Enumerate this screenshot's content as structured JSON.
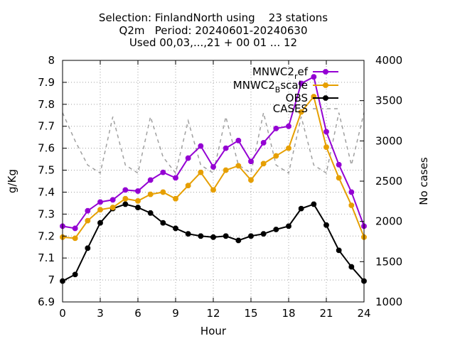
{
  "chart_data": {
    "type": "line",
    "title_lines": [
      "Selection: FinlandNorth using    23 stations",
      "Q2m   Period: 20240601-20240630",
      "Used 00,03,...,21 + 00 01 ... 12"
    ],
    "xlabel": "Hour",
    "ylabel": "g/Kg",
    "y2label": "No cases",
    "xlim": [
      0,
      24
    ],
    "ylim": [
      6.9,
      8.0
    ],
    "y2lim": [
      1000,
      4000
    ],
    "xticks": [
      "0",
      "3",
      "6",
      "9",
      "12",
      "15",
      "18",
      "21",
      "24"
    ],
    "yticks": [
      "6.9",
      "7",
      "7.1",
      "7.2",
      "7.3",
      "7.4",
      "7.5",
      "7.6",
      "7.7",
      "7.8",
      "7.9",
      "8"
    ],
    "y2ticks": [
      "1000",
      "1500",
      "2000",
      "2500",
      "3000",
      "3500",
      "4000"
    ],
    "grid": true,
    "legend_position": "top-right",
    "x": [
      0,
      1,
      2,
      3,
      4,
      5,
      6,
      7,
      8,
      9,
      10,
      11,
      12,
      13,
      14,
      15,
      16,
      17,
      18,
      19,
      20,
      21,
      22,
      23,
      24
    ],
    "series": [
      {
        "name": "MNWC2_ref",
        "legend": {
          "main": "MNWC2",
          "sub": "r",
          "rest": "ef"
        },
        "color": "#9400d3",
        "axis": "y1",
        "style": "line-points",
        "values": [
          7.245,
          7.235,
          7.315,
          7.355,
          7.365,
          7.41,
          7.405,
          7.455,
          7.49,
          7.465,
          7.555,
          7.61,
          7.515,
          7.6,
          7.635,
          7.54,
          7.625,
          7.69,
          7.7,
          7.895,
          7.925,
          7.675,
          7.525,
          7.4,
          7.245
        ]
      },
      {
        "name": "MNWC2_Bscale",
        "legend": {
          "main": "MNWC2",
          "sub": "B",
          "rest": "scale"
        },
        "color": "#e69f00",
        "axis": "y1",
        "style": "line-points",
        "values": [
          7.195,
          7.19,
          7.27,
          7.32,
          7.33,
          7.37,
          7.36,
          7.39,
          7.4,
          7.37,
          7.43,
          7.49,
          7.41,
          7.5,
          7.52,
          7.455,
          7.53,
          7.565,
          7.6,
          7.765,
          7.835,
          7.605,
          7.465,
          7.34,
          7.195
        ]
      },
      {
        "name": "OBS",
        "legend": {
          "main": "OBS",
          "sub": "",
          "rest": ""
        },
        "color": "#000000",
        "axis": "y1",
        "style": "line-points",
        "values": [
          6.995,
          7.025,
          7.145,
          7.26,
          7.325,
          7.345,
          7.33,
          7.305,
          7.26,
          7.235,
          7.21,
          7.2,
          7.195,
          7.2,
          7.18,
          7.2,
          7.21,
          7.23,
          7.245,
          7.325,
          7.345,
          7.25,
          7.135,
          7.06,
          6.995
        ]
      },
      {
        "name": "CASES",
        "legend": {
          "main": "CASES",
          "sub": "",
          "rest": ""
        },
        "color": "#a0a0a0",
        "axis": "y2",
        "style": "dashed",
        "values": [
          3350,
          3000,
          2700,
          2600,
          3300,
          2700,
          2600,
          3300,
          2800,
          2600,
          3250,
          2700,
          2600,
          3300,
          2700,
          2600,
          3350,
          2700,
          2600,
          3300,
          2700,
          2600,
          3350,
          2700,
          3350
        ]
      }
    ]
  }
}
